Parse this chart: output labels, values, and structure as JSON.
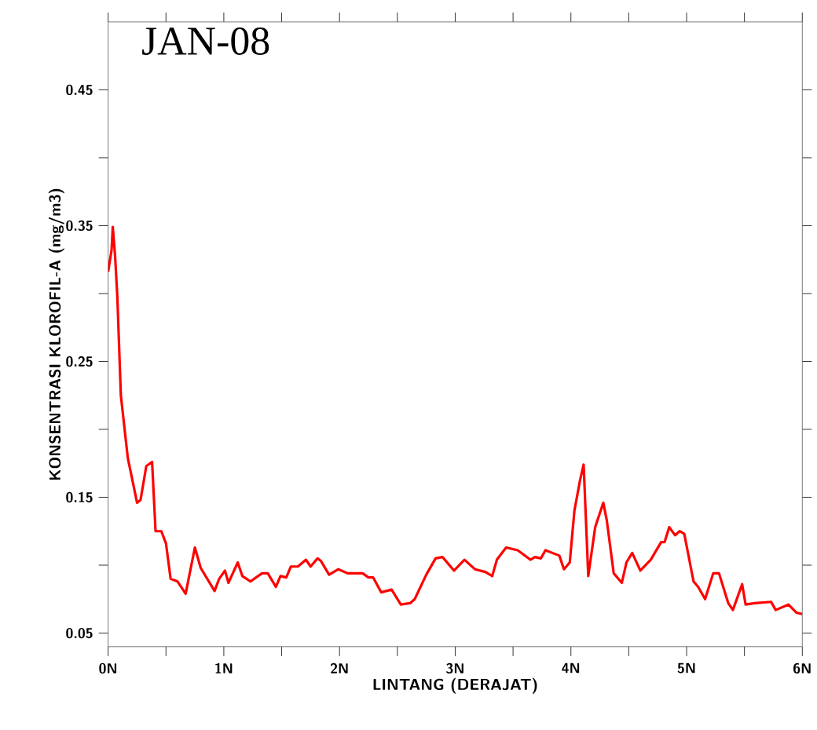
{
  "chart_data": {
    "type": "line",
    "title": "JAN-08",
    "xlabel": "LINTANG (DERAJAT)",
    "ylabel": "KONSENTRASI KLOROFIL-A (mg/m3)",
    "xlim": [
      0,
      6
    ],
    "ylim": [
      0.04,
      0.5
    ],
    "xticks": [
      {
        "value": 0,
        "label": "0N"
      },
      {
        "value": 0.5,
        "label": null
      },
      {
        "value": 1,
        "label": "1N"
      },
      {
        "value": 1.5,
        "label": null
      },
      {
        "value": 2,
        "label": "2N"
      },
      {
        "value": 2.5,
        "label": null
      },
      {
        "value": 3,
        "label": "3N"
      },
      {
        "value": 3.5,
        "label": null
      },
      {
        "value": 4,
        "label": "4N"
      },
      {
        "value": 4.5,
        "label": null
      },
      {
        "value": 5,
        "label": "5N"
      },
      {
        "value": 5.5,
        "label": null
      },
      {
        "value": 6,
        "label": "6N"
      }
    ],
    "yticks": [
      0.05,
      {
        "value": 0.1,
        "label": null
      },
      0.15,
      {
        "value": 0.2,
        "label": null
      },
      0.25,
      {
        "value": 0.3,
        "label": null
      },
      0.35,
      {
        "value": 0.4,
        "label": null
      },
      0.45
    ],
    "x": [
      0,
      0.03,
      0.04,
      0.06,
      0.08,
      0.11,
      0.17,
      0.25,
      0.28,
      0.33,
      0.38,
      0.41,
      0.46,
      0.5,
      0.54,
      0.6,
      0.67,
      0.75,
      0.8,
      0.92,
      0.96,
      1.01,
      1.04,
      1.12,
      1.16,
      1.23,
      1.33,
      1.38,
      1.45,
      1.49,
      1.54,
      1.58,
      1.64,
      1.71,
      1.75,
      1.81,
      1.84,
      1.91,
      1.99,
      2.07,
      2.2,
      2.25,
      2.29,
      2.36,
      2.45,
      2.53,
      2.61,
      2.65,
      2.75,
      2.83,
      2.89,
      2.99,
      3.08,
      3.17,
      3.26,
      3.32,
      3.36,
      3.44,
      3.54,
      3.65,
      3.69,
      3.74,
      3.78,
      3.9,
      3.94,
      3.99,
      4.03,
      4.08,
      4.11,
      4.15,
      4.21,
      4.28,
      4.31,
      4.37,
      4.44,
      4.48,
      4.53,
      4.6,
      4.69,
      4.78,
      4.81,
      4.85,
      4.9,
      4.94,
      4.98,
      5.06,
      5.1,
      5.16,
      5.23,
      5.28,
      5.36,
      5.4,
      5.48,
      5.51,
      5.59,
      5.73,
      5.77,
      5.88,
      5.95,
      6.0
    ],
    "series": [
      {
        "color": "#ff0000",
        "values": [
          0.316,
          0.332,
          0.349,
          0.328,
          0.297,
          0.225,
          0.179,
          0.146,
          0.148,
          0.173,
          0.176,
          0.125,
          0.125,
          0.116,
          0.09,
          0.088,
          0.079,
          0.113,
          0.098,
          0.081,
          0.09,
          0.096,
          0.087,
          0.102,
          0.092,
          0.088,
          0.094,
          0.094,
          0.084,
          0.092,
          0.091,
          0.099,
          0.099,
          0.104,
          0.099,
          0.105,
          0.103,
          0.093,
          0.097,
          0.094,
          0.094,
          0.091,
          0.091,
          0.08,
          0.082,
          0.071,
          0.072,
          0.075,
          0.093,
          0.105,
          0.106,
          0.096,
          0.104,
          0.097,
          0.095,
          0.092,
          0.104,
          0.113,
          0.111,
          0.104,
          0.106,
          0.105,
          0.111,
          0.107,
          0.097,
          0.102,
          0.14,
          0.163,
          0.174,
          0.092,
          0.128,
          0.146,
          0.133,
          0.094,
          0.087,
          0.102,
          0.109,
          0.096,
          0.104,
          0.117,
          0.117,
          0.128,
          0.122,
          0.125,
          0.123,
          0.088,
          0.084,
          0.075,
          0.094,
          0.094,
          0.072,
          0.067,
          0.086,
          0.071,
          0.072,
          0.073,
          0.067,
          0.071,
          0.065,
          0.064
        ]
      }
    ]
  }
}
